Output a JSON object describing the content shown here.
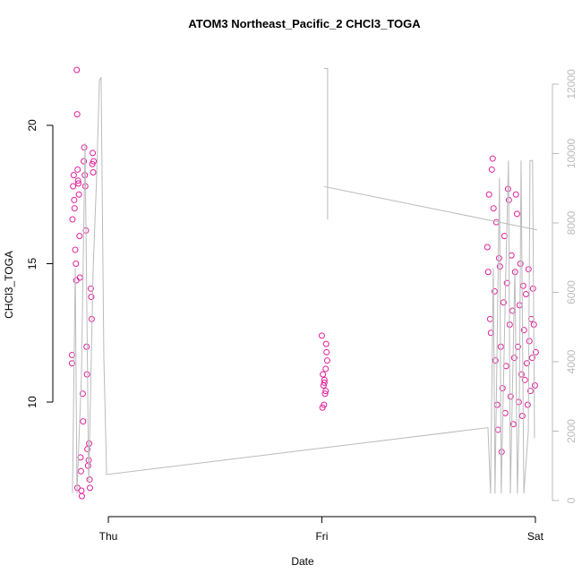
{
  "chart_data": {
    "type": "scatter",
    "title": "ATOM3 Northeast_Pacific_2 CHCl3_TOGA",
    "x_label": "Date",
    "y_label": "CHCl3_TOGA",
    "xlim": [
      -0.26,
      2.08
    ],
    "ylim": [
      5.86,
      22.62
    ],
    "y2lim": [
      -464,
      12903
    ],
    "xticks": [
      {
        "value": 0,
        "label": "Thu"
      },
      {
        "value": 1,
        "label": "Fri"
      },
      {
        "value": 2,
        "label": "Sat"
      }
    ],
    "yticks": [
      10,
      15,
      20
    ],
    "y2ticks": [
      0,
      2000,
      4000,
      6000,
      8000,
      10000,
      12000
    ],
    "series": [
      {
        "type": "scatter",
        "color": "#e0209c",
        "x": [
          -0.17,
          -0.17,
          -0.168,
          -0.165,
          -0.162,
          -0.16,
          -0.155,
          -0.152,
          -0.15,
          -0.148,
          -0.146,
          -0.144,
          -0.14,
          -0.138,
          -0.135,
          -0.133,
          -0.13,
          -0.128,
          -0.126,
          -0.124,
          -0.12,
          -0.118,
          -0.115,
          -0.113,
          -0.11,
          -0.108,
          -0.105,
          -0.102,
          -0.1,
          -0.098,
          -0.095,
          -0.092,
          -0.09,
          -0.088,
          -0.086,
          -0.082,
          -0.08,
          -0.078,
          -0.075,
          -0.073,
          -0.071,
          -0.069,
          -0.145,
          -0.158,
          -0.142,
          1.0,
          1.005,
          1.008,
          1.01,
          1.012,
          1.015,
          1.018,
          1.02,
          1.022,
          1.025,
          1.012,
          1.003,
          1.018,
          1.775,
          1.779,
          1.783,
          1.788,
          1.792,
          1.796,
          1.8,
          1.804,
          1.809,
          1.813,
          1.817,
          1.821,
          1.825,
          1.83,
          1.834,
          1.838,
          1.842,
          1.846,
          1.851,
          1.855,
          1.859,
          1.863,
          1.867,
          1.872,
          1.876,
          1.88,
          1.884,
          1.888,
          1.893,
          1.897,
          1.901,
          1.905,
          1.909,
          1.914,
          1.918,
          1.922,
          1.926,
          1.93,
          1.935,
          1.939,
          1.943,
          1.947,
          1.951,
          1.956,
          1.96,
          1.964,
          1.968,
          1.972,
          1.977,
          1.981,
          1.985,
          1.989,
          1.993,
          1.998,
          2.002
        ],
        "values": [
          11.7,
          11.4,
          16.6,
          17.8,
          18.2,
          17.3,
          15.5,
          15.0,
          14.4,
          22.0,
          20.4,
          18.4,
          17.9,
          17.5,
          16.0,
          14.5,
          8.0,
          7.5,
          6.8,
          6.6,
          10.3,
          9.3,
          18.7,
          19.2,
          18.2,
          17.8,
          16.2,
          12.0,
          11.0,
          8.3,
          7.7,
          7.9,
          8.5,
          7.2,
          6.9,
          14.1,
          13.8,
          13.0,
          18.6,
          19.0,
          18.3,
          18.7,
          6.9,
          17.0,
          18.0,
          12.4,
          11.0,
          10.6,
          9.9,
          10.8,
          10.3,
          11.2,
          12.1,
          11.8,
          11.5,
          10.7,
          9.8,
          10.4,
          15.6,
          14.7,
          17.5,
          13.0,
          12.5,
          18.4,
          18.8,
          17.0,
          14.0,
          11.5,
          16.5,
          9.9,
          9.0,
          15.2,
          14.9,
          12.0,
          8.2,
          10.5,
          13.6,
          16.0,
          9.6,
          11.3,
          14.3,
          17.7,
          17.3,
          12.8,
          10.2,
          15.3,
          13.3,
          9.2,
          11.6,
          14.7,
          17.5,
          16.8,
          12.0,
          10.0,
          13.5,
          15.0,
          11.0,
          9.5,
          14.2,
          12.6,
          10.8,
          13.9,
          11.4,
          9.9,
          14.8,
          12.2,
          10.4,
          13.0,
          11.6,
          14.1,
          12.8,
          10.6,
          11.8
        ]
      },
      {
        "type": "line",
        "axis": "y2",
        "color": "#bbbbbb",
        "x": [
          -0.168,
          -0.155,
          -0.147,
          -0.126,
          -0.109,
          -0.092,
          -0.071,
          -0.055,
          -0.042,
          -0.034,
          -0.021,
          -0.008,
          1.778,
          1.79,
          1.803,
          1.811,
          1.832,
          1.84,
          1.862,
          1.874,
          1.883,
          1.904,
          1.916,
          1.925,
          1.933,
          1.946,
          1.967,
          1.975,
          1.987,
          1.996,
          null,
          1.01,
          1.027,
          1.027,
          null,
          1.01,
          2.008
        ],
        "values": [
          200,
          6700,
          200,
          3600,
          10300,
          500,
          6700,
          9300,
          12100,
          12200,
          4100,
          750,
          2100,
          200,
          6700,
          200,
          9300,
          200,
          6700,
          9800,
          200,
          6700,
          200,
          2800,
          9800,
          200,
          2000,
          9800,
          9800,
          1800,
          null,
          12450,
          12450,
          8100,
          null,
          9050,
          7800
        ]
      }
    ]
  }
}
